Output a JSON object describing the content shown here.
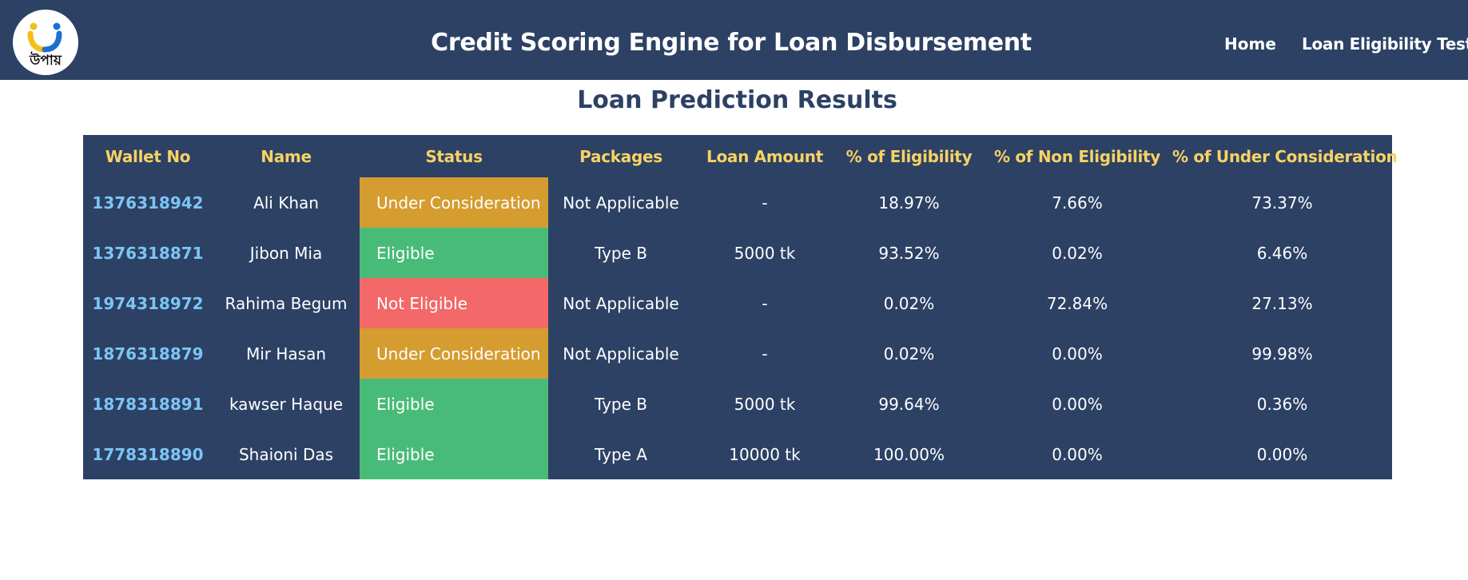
{
  "brand": {
    "logo_text": "উপায়",
    "colors": {
      "navbar": "#2c4164",
      "logo_yellow": "#f2c018",
      "logo_blue": "#1c6fd1"
    }
  },
  "header": {
    "title": "Credit Scoring Engine for Loan Disbursement",
    "nav": [
      {
        "label": "Home"
      },
      {
        "label": "Loan Eligibility Test"
      }
    ]
  },
  "main": {
    "title": "Loan Prediction Results",
    "table": {
      "columns": [
        "Wallet No",
        "Name",
        "Status",
        "Packages",
        "Loan Amount",
        "% of Eligibility",
        "% of Non Eligibility",
        "% of Under Consideration"
      ],
      "rows": [
        {
          "wallet": "1376318942",
          "name": "Ali Khan",
          "status": "Under Consideration",
          "status_kind": "under",
          "package": "Not Applicable",
          "amount": "-",
          "eligibility": "18.97%",
          "non_eligibility": "7.66%",
          "under_consideration": "73.37%"
        },
        {
          "wallet": "1376318871",
          "name": "Jibon Mia",
          "status": "Eligible",
          "status_kind": "eligible",
          "package": "Type B",
          "amount": "5000 tk",
          "eligibility": "93.52%",
          "non_eligibility": "0.02%",
          "under_consideration": "6.46%"
        },
        {
          "wallet": "1974318972",
          "name": "Rahima Begum",
          "status": "Not Eligible",
          "status_kind": "not",
          "package": "Not Applicable",
          "amount": "-",
          "eligibility": "0.02%",
          "non_eligibility": "72.84%",
          "under_consideration": "27.13%"
        },
        {
          "wallet": "1876318879",
          "name": "Mir Hasan",
          "status": "Under Consideration",
          "status_kind": "under",
          "package": "Not Applicable",
          "amount": "-",
          "eligibility": "0.02%",
          "non_eligibility": "0.00%",
          "under_consideration": "99.98%"
        },
        {
          "wallet": "1878318891",
          "name": "kawser Haque",
          "status": "Eligible",
          "status_kind": "eligible",
          "package": "Type B",
          "amount": "5000 tk",
          "eligibility": "99.64%",
          "non_eligibility": "0.00%",
          "under_consideration": "0.36%"
        },
        {
          "wallet": "1778318890",
          "name": "Shaioni Das",
          "status": "Eligible",
          "status_kind": "eligible",
          "package": "Type A",
          "amount": "10000 tk",
          "eligibility": "100.00%",
          "non_eligibility": "0.00%",
          "under_consideration": "0.00%"
        }
      ],
      "status_colors": {
        "under": "#d59c30",
        "eligible": "#49bb79",
        "not": "#f36868"
      }
    }
  }
}
